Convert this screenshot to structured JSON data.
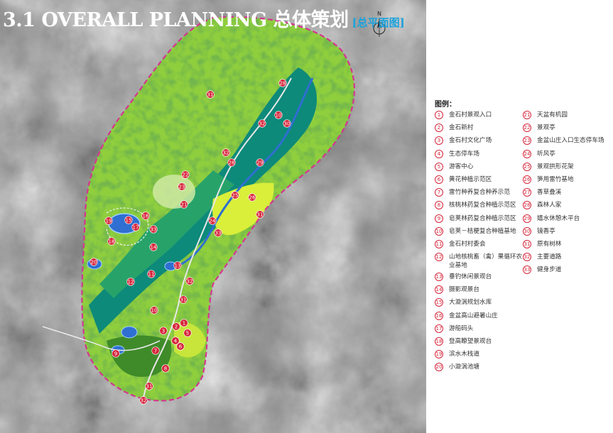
{
  "header": {
    "title": "3.1  OVERALL PLANNING 总体策划",
    "subtitle": "[总平面图]",
    "north_label": "N"
  },
  "legend": {
    "title": "图例：",
    "items": [
      {
        "num": "1",
        "text": "金石村景观入口"
      },
      {
        "num": "2",
        "text": "金石新村"
      },
      {
        "num": "3",
        "text": "金石村文化广场"
      },
      {
        "num": "4",
        "text": "生态停车场"
      },
      {
        "num": "5",
        "text": "游客中心"
      },
      {
        "num": "6",
        "text": "黄花种植示范区"
      },
      {
        "num": "7",
        "text": "雷竹种养复合种养示范"
      },
      {
        "num": "8",
        "text": "核桃林药复合种植示范区"
      },
      {
        "num": "9",
        "text": "皂荚林药复合种植示范区"
      },
      {
        "num": "10",
        "text": "皂荚－桔梗复合种植基地"
      },
      {
        "num": "11",
        "text": "金石村村委会"
      },
      {
        "num": "12",
        "text": "山地核桃畜（禽）果循环农业基地"
      },
      {
        "num": "13",
        "text": "垂钓休闲景观台"
      },
      {
        "num": "14",
        "text": "摄影观景台"
      },
      {
        "num": "15",
        "text": "大漩涡规划水库"
      },
      {
        "num": "16",
        "text": "金盆高山避暑山庄"
      },
      {
        "num": "17",
        "text": "游船码头"
      },
      {
        "num": "18",
        "text": "登高瞭望景观台"
      },
      {
        "num": "19",
        "text": "滨水木栈道"
      },
      {
        "num": "20",
        "text": "小漩涡池塘"
      },
      {
        "num": "21",
        "text": "天盆有机园"
      },
      {
        "num": "22",
        "text": "景观亭"
      },
      {
        "num": "23",
        "text": "金盆山庄入口生态停车场"
      },
      {
        "num": "24",
        "text": "听风亭"
      },
      {
        "num": "25",
        "text": "景观拱形花架"
      },
      {
        "num": "26",
        "text": "笋用雷竹基地"
      },
      {
        "num": "27",
        "text": "香草叠溪"
      },
      {
        "num": "28",
        "text": "森林人家"
      },
      {
        "num": "29",
        "text": "嬉水休憩木平台"
      },
      {
        "num": "30",
        "text": "镜香亭"
      },
      {
        "num": "31",
        "text": "原有树林"
      },
      {
        "num": "32",
        "text": "主要道路"
      },
      {
        "num": "33",
        "text": "健身步道"
      }
    ]
  },
  "map_markers": [
    {
      "num": "31"
    },
    {
      "num": "28"
    },
    {
      "num": "10"
    },
    {
      "num": "32"
    },
    {
      "num": "30"
    },
    {
      "num": "32"
    },
    {
      "num": "28"
    },
    {
      "num": "29"
    },
    {
      "num": "22"
    },
    {
      "num": "23"
    },
    {
      "num": "25"
    },
    {
      "num": "26"
    },
    {
      "num": "21"
    },
    {
      "num": "31"
    },
    {
      "num": "19"
    },
    {
      "num": "15"
    },
    {
      "num": "16"
    },
    {
      "num": "17"
    },
    {
      "num": "33"
    },
    {
      "num": "18"
    },
    {
      "num": "24"
    },
    {
      "num": "33"
    },
    {
      "num": "14"
    },
    {
      "num": "20"
    },
    {
      "num": "13"
    },
    {
      "num": "11"
    },
    {
      "num": "12"
    },
    {
      "num": "32"
    },
    {
      "num": "31"
    },
    {
      "num": "10"
    },
    {
      "num": "3"
    },
    {
      "num": "2"
    },
    {
      "num": "1"
    },
    {
      "num": "5"
    },
    {
      "num": "6"
    },
    {
      "num": "4"
    },
    {
      "num": "9"
    },
    {
      "num": "7"
    },
    {
      "num": "8"
    },
    {
      "num": "31"
    },
    {
      "num": "32"
    }
  ],
  "colors": {
    "forest": "#8fcf3e",
    "forest_dark": "#3f8b2a",
    "teal": "#0d8a7a",
    "lime": "#d9ef3a",
    "water": "#2f6fd1",
    "boundary": "#d4358f",
    "marker": "#d6253a",
    "title_blue": "#1aa2dc"
  }
}
